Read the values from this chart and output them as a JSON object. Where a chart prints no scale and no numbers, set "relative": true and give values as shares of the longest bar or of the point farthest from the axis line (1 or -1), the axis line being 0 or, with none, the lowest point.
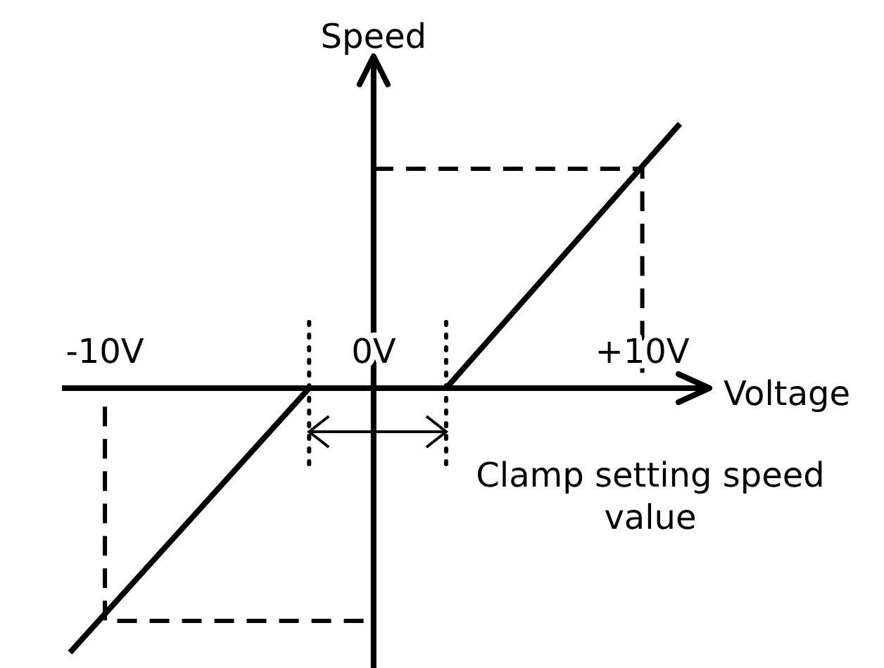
{
  "chart_data": {
    "type": "line",
    "xlabel": "Voltage",
    "ylabel": "Speed",
    "relative": true,
    "xlim": [
      -11.6,
      12.5
    ],
    "xticks": [
      {
        "value": -10,
        "label": "-10V"
      },
      {
        "value": 0,
        "label": "0V"
      },
      {
        "value": 10,
        "label": "+10V"
      }
    ],
    "tick_labels": "x",
    "annotations": [
      "Clamp setting speed value"
    ],
    "series": [
      {
        "color": "#000000",
        "line_style": "solid",
        "x": [
          -11.3,
          -2.4,
          0,
          2.7,
          11.4
        ],
        "values": [
          -1,
          0,
          null,
          0,
          1
        ]
      },
      {
        "color": "#000000",
        "line_style": "dashed",
        "x": [
          0,
          10,
          10
        ],
        "values": [
          0.83,
          0.83,
          0
        ]
      },
      {
        "color": "#000000",
        "line_style": "dashed",
        "x": [
          -10,
          -10,
          0
        ],
        "values": [
          -0.07,
          -0.88,
          -0.88
        ]
      },
      {
        "color": "#000000",
        "line_style": "dotted",
        "x": [
          -2.4,
          -2.4
        ],
        "values": [
          0.25,
          -0.3
        ]
      },
      {
        "color": "#000000",
        "line_style": "dotted",
        "x": [
          2.7,
          2.7
        ],
        "values": [
          0.25,
          -0.3
        ]
      }
    ]
  }
}
